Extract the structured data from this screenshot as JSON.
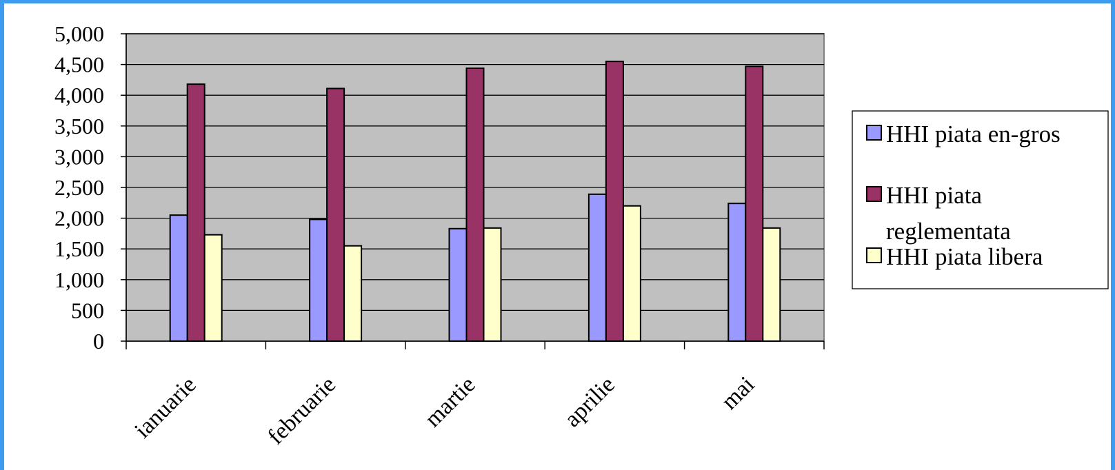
{
  "colors": {
    "frame": "#3d9cf0",
    "plot_bg": "#c0c0c0",
    "series": [
      "#9999ff",
      "#993366",
      "#ffffcc"
    ]
  },
  "chart_data": {
    "type": "bar",
    "categories": [
      "ianuarie",
      "februarie",
      "martie",
      "aprilie",
      "mai"
    ],
    "series": [
      {
        "name": "HHI piata en-gros",
        "values": [
          2050,
          1980,
          1830,
          2390,
          2240
        ]
      },
      {
        "name": "HHI piata reglementata",
        "values": [
          4180,
          4110,
          4440,
          4550,
          4470
        ]
      },
      {
        "name": "HHI piata libera",
        "values": [
          1730,
          1550,
          1840,
          2200,
          1840
        ]
      }
    ],
    "y_ticks": [
      "0",
      "500",
      "1,000",
      "1,500",
      "2,000",
      "2,500",
      "3,000",
      "3,500",
      "4,000",
      "4,500",
      "5,000"
    ],
    "ylim": [
      0,
      5000
    ],
    "grid": true,
    "legend_position": "right",
    "legend_lines": [
      [
        "HHI piata en-gros"
      ],
      [
        "HHI piata",
        "reglementata"
      ],
      [
        "HHI piata libera"
      ]
    ]
  }
}
